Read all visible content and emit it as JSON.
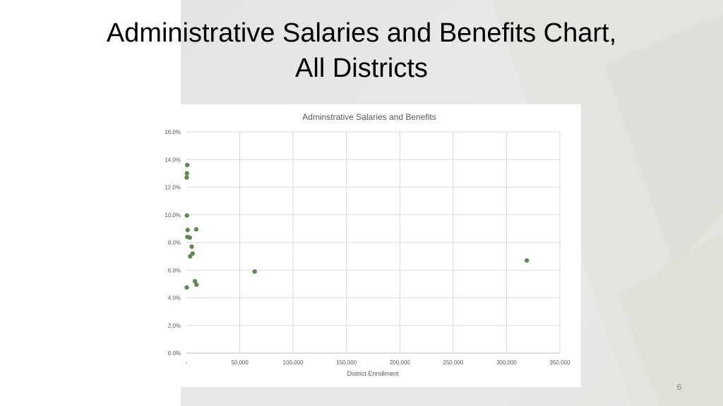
{
  "slide": {
    "title_line1": "Administrative Salaries and Benefits Chart,",
    "title_line2": "All Districts",
    "page_number": "6"
  },
  "theme": {
    "panel_bg": "#e6e6e6",
    "marker_color": "#5e8a55",
    "grid_color": "#d9d9d9",
    "axis_text_color": "#595959"
  },
  "chart_data": {
    "type": "scatter",
    "title": "Adminstrative Salaries and Benefits",
    "xlabel": "District Enrollment",
    "ylabel": "",
    "xlim": [
      0,
      350000
    ],
    "ylim": [
      0.0,
      16.0
    ],
    "x_ticks": [
      0,
      50000,
      100000,
      150000,
      200000,
      250000,
      300000,
      350000
    ],
    "x_tick_labels": [
      "-",
      "50,000",
      "100,000",
      "150,000",
      "200,000",
      "250,000",
      "300,000",
      "350,000"
    ],
    "y_ticks": [
      0,
      2,
      4,
      6,
      8,
      10,
      12,
      14,
      16
    ],
    "y_tick_labels": [
      "0.0%",
      "2.0%",
      "4.0%",
      "6.0%",
      "8.0%",
      "10.0%",
      "12.0%",
      "14.0%",
      "16.0%"
    ],
    "grid": true,
    "legend": "none",
    "points": [
      {
        "x": 800,
        "y": 13.6
      },
      {
        "x": 500,
        "y": 13.0
      },
      {
        "x": 300,
        "y": 12.7
      },
      {
        "x": 500,
        "y": 9.95
      },
      {
        "x": 1200,
        "y": 8.9
      },
      {
        "x": 9200,
        "y": 8.95
      },
      {
        "x": 900,
        "y": 8.4
      },
      {
        "x": 3200,
        "y": 8.35
      },
      {
        "x": 5000,
        "y": 7.7
      },
      {
        "x": 5800,
        "y": 7.2
      },
      {
        "x": 3500,
        "y": 7.0
      },
      {
        "x": 8000,
        "y": 5.2
      },
      {
        "x": 9500,
        "y": 4.95
      },
      {
        "x": 300,
        "y": 4.75
      },
      {
        "x": 64000,
        "y": 5.9
      },
      {
        "x": 319000,
        "y": 6.7
      }
    ]
  }
}
